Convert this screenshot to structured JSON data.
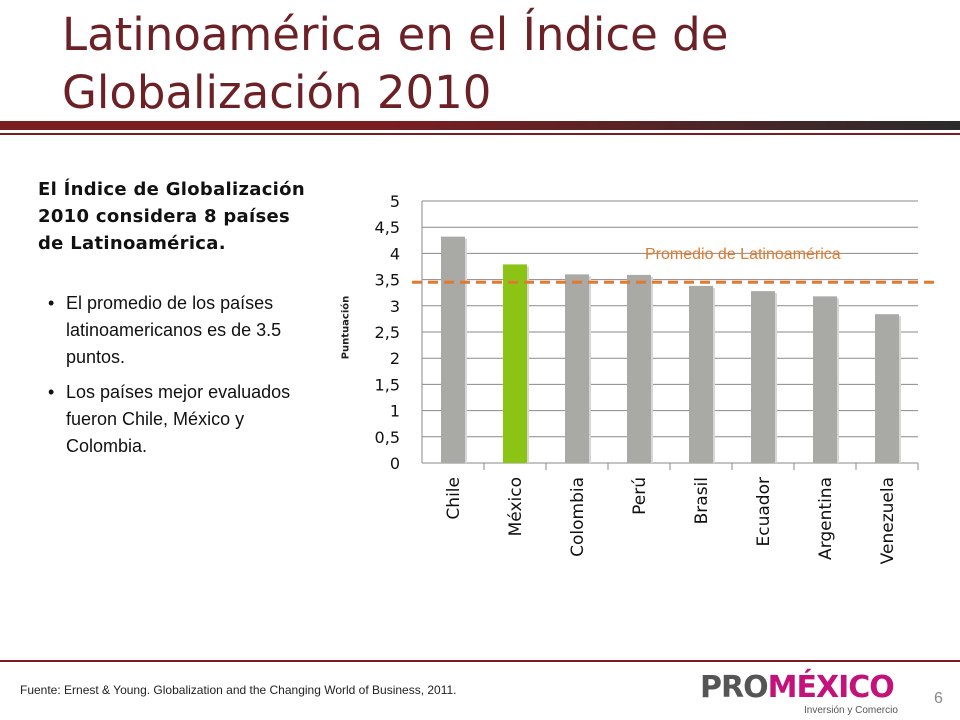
{
  "slide": {
    "title": "Latinoamérica en el Índice de Globalización 2010",
    "lead": "El Índice de Globalización 2010 considera 8 países de Latinoamérica.",
    "bullets": [
      "El promedio de los países latinoamericanos es de 3.5 puntos.",
      "Los países mejor evaluados fueron Chile, México y Colombia."
    ],
    "source": "Fuente: Ernest & Young. Globalization and the Changing World of Business, 2011.",
    "page_number": "6"
  },
  "logo": {
    "pro": "PRO",
    "mexico": "MÉXICO",
    "tagline": "Inversión y Comercio"
  },
  "colors": {
    "title": "#6b2125",
    "bar": "#a9a9a6",
    "highlight_bar": "#8cc415",
    "average_line": "#e07a2e",
    "accent_rule": "#7a1e22"
  },
  "chart_data": {
    "type": "bar",
    "categories": [
      "Chile",
      "México",
      "Colombia",
      "Perú",
      "Brasil",
      "Ecuador",
      "Argentina",
      "Venezuela"
    ],
    "values": [
      4.32,
      3.79,
      3.6,
      3.59,
      3.38,
      3.28,
      3.18,
      2.84
    ],
    "highlight_category": "México",
    "ylabel": "Puntuación",
    "ylim": [
      0,
      5
    ],
    "yticks": [
      "0",
      "0,5",
      "1",
      "1,5",
      "2",
      "2,5",
      "3",
      "3,5",
      "4",
      "4,5",
      "5"
    ],
    "grid": true,
    "reference_line": {
      "label": "Promedio de Latinoamérica",
      "value": 3.45
    }
  }
}
